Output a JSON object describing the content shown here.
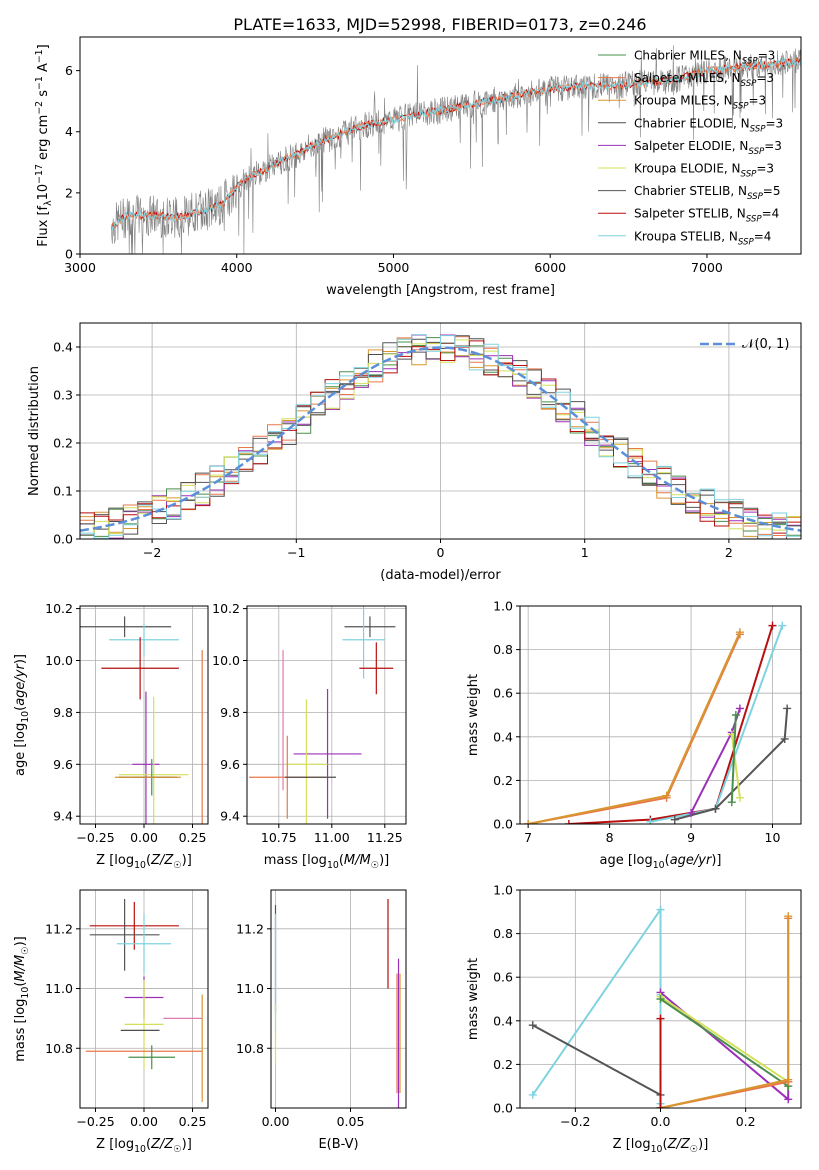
{
  "figure": {
    "title": "PLATE=1633, MJD=52998, FIBERID=0173, z=0.246"
  },
  "colors": {
    "chabrier_miles": "#4a8f4a",
    "salpeter_miles": "#e8774a",
    "kroupa_miles": "#d9962f",
    "chabrier_elodie": "#4f4f4f",
    "salpeter_elodie": "#9b30b8",
    "kroupa_elodie": "#d4e05a",
    "chabrier_stelib": "#555555",
    "salpeter_stelib": "#b80f0f",
    "kroupa_stelib": "#7fd3e0",
    "gaussian": "#5b8fd9",
    "spectrum": "#808080"
  },
  "legend_models": [
    {
      "name": "Chabrier MILES",
      "nssp": "3",
      "color_key": "chabrier_miles"
    },
    {
      "name": "Salpeter MILES",
      "nssp": "3",
      "color_key": "salpeter_miles"
    },
    {
      "name": "Kroupa MILES",
      "nssp": "3",
      "color_key": "kroupa_miles"
    },
    {
      "name": "Chabrier ELODIE",
      "nssp": "3",
      "color_key": "chabrier_elodie"
    },
    {
      "name": "Salpeter ELODIE",
      "nssp": "3",
      "color_key": "salpeter_elodie"
    },
    {
      "name": "Kroupa ELODIE",
      "nssp": "3",
      "color_key": "kroupa_elodie"
    },
    {
      "name": "Chabrier STELIB",
      "nssp": "5",
      "color_key": "chabrier_stelib"
    },
    {
      "name": "Salpeter STELIB",
      "nssp": "4",
      "color_key": "salpeter_stelib"
    },
    {
      "name": "Kroupa STELIB",
      "nssp": "4",
      "color_key": "kroupa_stelib"
    }
  ],
  "chart_data": [
    {
      "id": "spectrum",
      "type": "line",
      "title": "PLATE=1633, MJD=52998, FIBERID=0173, z=0.246",
      "xlabel": "wavelength [Angstrom, rest frame]",
      "ylabel": "Flux [f_λ 10^-17 erg cm^-2 s^-1 A^-1]",
      "xlim": [
        3000,
        7600
      ],
      "ylim": [
        0,
        7.1
      ],
      "xticks": [
        3000,
        4000,
        5000,
        6000,
        7000
      ],
      "yticks": [
        0,
        2,
        4,
        6
      ],
      "grid": false,
      "legend_position": "top-right",
      "continuum": {
        "x": [
          3200,
          3300,
          3400,
          3500,
          3600,
          3700,
          3800,
          3900,
          4000,
          4100,
          4200,
          4300,
          4400,
          4500,
          4600,
          4800,
          5000,
          5200,
          5400,
          5600,
          5800,
          6000,
          6200,
          6400,
          6600,
          6800,
          7000,
          7200,
          7400,
          7600
        ],
        "y": [
          0.9,
          1.25,
          1.3,
          1.25,
          1.2,
          1.3,
          1.45,
          1.6,
          2.2,
          2.6,
          2.8,
          3.1,
          3.3,
          3.6,
          3.8,
          4.2,
          4.4,
          4.6,
          4.8,
          5.0,
          5.2,
          5.4,
          5.5,
          5.5,
          5.6,
          5.7,
          6.0,
          6.1,
          6.2,
          6.3
        ]
      }
    },
    {
      "id": "residuals",
      "type": "line",
      "xlabel": "(data-model)/error",
      "ylabel": "Normed distribution",
      "xlim": [
        -2.5,
        2.5
      ],
      "ylim": [
        0,
        0.45
      ],
      "xticks": [
        -2,
        -1,
        0,
        1,
        2
      ],
      "yticks": [
        0.0,
        0.1,
        0.2,
        0.3,
        0.4
      ],
      "grid": true,
      "legend_position": "top-right",
      "series": [
        {
          "name": "N(0,1)",
          "function": "gaussian",
          "mean": 0,
          "sigma": 1
        }
      ]
    },
    {
      "id": "age_vs_Z",
      "type": "scatter",
      "xlabel": "Z [log10(Z/Z☉)]",
      "ylabel": "age  [log10(age/yr)]",
      "xlim": [
        -0.33,
        0.33
      ],
      "ylim": [
        9.37,
        10.21
      ],
      "xticks": [
        -0.25,
        0.0,
        0.25
      ],
      "yticks": [
        9.4,
        9.6,
        9.8,
        10.0,
        10.2
      ],
      "grid": true,
      "points": [
        {
          "model": "chabrier_stelib",
          "x": -0.1,
          "xerr": 0.24,
          "y": 10.13,
          "yerr": 0.04
        },
        {
          "model": "kroupa_stelib",
          "x": 0.0,
          "xerr": 0.18,
          "y": 10.08,
          "yerr": 0.06
        },
        {
          "model": "salpeter_stelib",
          "x": -0.02,
          "xerr": 0.2,
          "y": 9.97,
          "yerr": 0.12
        },
        {
          "model": "salpeter_elodie",
          "x": 0.01,
          "xerr": 0.07,
          "y": 9.6,
          "yerr": 0.28
        },
        {
          "model": "kroupa_elodie",
          "x": 0.05,
          "xerr": 0.18,
          "y": 9.56,
          "yerr": 0.3
        },
        {
          "model": "chabrier_miles",
          "x": 0.04,
          "xerr": 0.1,
          "y": 9.55,
          "yerr": 0.07
        },
        {
          "model": "salpeter_miles",
          "x": 0.3,
          "xerr": 0.0,
          "y": 9.7,
          "yerr": 0.34
        },
        {
          "model": "chabrier_elodie",
          "x": 0.02,
          "xerr": 0.15,
          "y": 9.55,
          "yerr": 0.0
        },
        {
          "model": "kroupa_miles",
          "x": 0.02,
          "xerr": 0.17,
          "y": 9.55,
          "yerr": 0.0
        }
      ]
    },
    {
      "id": "age_vs_mass",
      "type": "scatter",
      "xlabel": "mass [log10(M/M☉)]",
      "ylabel": "",
      "xlim": [
        10.6,
        11.35
      ],
      "ylim": [
        9.37,
        10.21
      ],
      "xticks": [
        10.75,
        11.0,
        11.25
      ],
      "yticks": [
        9.4,
        9.6,
        9.8,
        10.0,
        10.2
      ],
      "grid": true,
      "points": [
        {
          "model": "chabrier_stelib",
          "x": 11.18,
          "xerr": 0.12,
          "y": 10.13,
          "yerr": 0.04
        },
        {
          "model": "kroupa_stelib",
          "x": 11.15,
          "xerr": 0.1,
          "y": 10.08,
          "yerr": 0.15
        },
        {
          "model": "salpeter_stelib",
          "x": 11.21,
          "xerr": 0.08,
          "y": 9.97,
          "yerr": 0.1
        },
        {
          "model": "salpeter_elodie",
          "x": 10.98,
          "xerr": 0.16,
          "y": 9.64,
          "yerr": 0.25
        },
        {
          "model": "kroupa_elodie",
          "x": 10.88,
          "xerr": 0.1,
          "y": 9.6,
          "yerr": 0.25
        },
        {
          "model": "salpeter_miles",
          "x": 10.79,
          "xerr": 0.18,
          "y": 9.55,
          "yerr": 0.16
        },
        {
          "model": "kroupa_stelib_b",
          "x": 10.77,
          "xerr": 0.0,
          "y": 9.77,
          "yerr": 0.27
        },
        {
          "model": "chabrier_elodie",
          "x": 10.9,
          "xerr": 0.12,
          "y": 9.55,
          "yerr": 0.0
        }
      ]
    },
    {
      "id": "massweight_vs_age",
      "type": "line",
      "xlabel": "age  [log10(age/yr)]",
      "ylabel": "mass weight",
      "xlim": [
        6.9,
        10.35
      ],
      "ylim": [
        0.0,
        1.0
      ],
      "xticks": [
        7,
        8,
        9,
        10
      ],
      "yticks": [
        0.0,
        0.2,
        0.4,
        0.6,
        0.8,
        1.0
      ],
      "grid": true,
      "series": [
        {
          "model": "salpeter_miles",
          "x": [
            7.0,
            8.7,
            9.6
          ],
          "y": [
            0.0,
            0.12,
            0.87
          ]
        },
        {
          "model": "kroupa_miles",
          "x": [
            7.0,
            8.7,
            9.6
          ],
          "y": [
            0.0,
            0.13,
            0.88
          ]
        },
        {
          "model": "salpeter_stelib",
          "x": [
            7.5,
            8.5,
            9.3,
            10.0
          ],
          "y": [
            0.0,
            0.02,
            0.07,
            0.91
          ]
        },
        {
          "model": "kroupa_stelib",
          "x": [
            8.5,
            9.3,
            10.12
          ],
          "y": [
            0.01,
            0.07,
            0.91
          ]
        },
        {
          "model": "chabrier_stelib",
          "x": [
            8.8,
            9.3,
            10.15,
            10.18
          ],
          "y": [
            0.02,
            0.07,
            0.39,
            0.53
          ]
        },
        {
          "model": "salpeter_elodie",
          "x": [
            9.0,
            9.5,
            9.6
          ],
          "y": [
            0.05,
            0.42,
            0.53
          ]
        },
        {
          "model": "kroupa_elodie",
          "x": [
            9.5,
            9.6
          ],
          "y": [
            0.41,
            0.12
          ]
        },
        {
          "model": "chabrier_miles",
          "x": [
            9.5,
            9.55
          ],
          "y": [
            0.1,
            0.5
          ]
        }
      ]
    },
    {
      "id": "mass_vs_Z",
      "type": "scatter",
      "xlabel": "Z [log10(Z/Z☉)]",
      "ylabel": "mass [log10(M/M☉)]",
      "xlim": [
        -0.33,
        0.33
      ],
      "ylim": [
        10.6,
        11.33
      ],
      "xticks": [
        -0.25,
        0.0,
        0.25
      ],
      "yticks": [
        10.8,
        11.0,
        11.2
      ],
      "grid": true,
      "points": [
        {
          "model": "salpeter_stelib",
          "x": -0.05,
          "xerr": 0.23,
          "y": 11.21,
          "yerr": 0.08
        },
        {
          "model": "chabrier_stelib",
          "x": -0.1,
          "xerr": 0.18,
          "y": 11.18,
          "yerr": 0.12
        },
        {
          "model": "kroupa_stelib",
          "x": 0.0,
          "xerr": 0.14,
          "y": 11.15,
          "yerr": 0.1
        },
        {
          "model": "salpeter_elodie",
          "x": 0.0,
          "xerr": 0.1,
          "y": 10.97,
          "yerr": 0.07
        },
        {
          "model": "kroupa_stelib_b",
          "x": 0.2,
          "xerr": 0.1,
          "y": 10.9,
          "yerr": 0.0
        },
        {
          "model": "kroupa_elodie",
          "x": 0.0,
          "xerr": 0.1,
          "y": 10.88,
          "yerr": 0.15
        },
        {
          "model": "chabrier_elodie",
          "x": -0.02,
          "xerr": 0.1,
          "y": 10.86,
          "yerr": 0.0
        },
        {
          "model": "salpeter_miles",
          "x": 0.0,
          "xerr": 0.3,
          "y": 10.79,
          "yerr": 0.0
        },
        {
          "model": "kroupa_miles",
          "x": 0.3,
          "xerr": 0.0,
          "y": 10.8,
          "yerr": 0.18
        },
        {
          "model": "chabrier_miles",
          "x": 0.04,
          "xerr": 0.12,
          "y": 10.77,
          "yerr": 0.04
        }
      ]
    },
    {
      "id": "mass_vs_ebv",
      "type": "scatter",
      "xlabel": "E(B-V)",
      "ylabel": "",
      "xlim": [
        -0.003,
        0.087
      ],
      "ylim": [
        10.6,
        11.33
      ],
      "xticks": [
        0.0,
        0.05
      ],
      "yticks": [
        10.8,
        11.0,
        11.2
      ],
      "grid": true,
      "points": [
        {
          "model": "chabrier_stelib",
          "x": 0.0,
          "y": 11.1,
          "yerr": 0.18
        },
        {
          "model": "kroupa_stelib",
          "x": 0.0,
          "y": 11.05,
          "yerr": 0.2
        },
        {
          "model": "kroupa_elodie",
          "x": 0.0,
          "y": 10.85,
          "yerr": 0.1
        },
        {
          "model": "salpeter_stelib",
          "x": 0.075,
          "y": 11.15,
          "yerr": 0.15
        },
        {
          "model": "salpeter_elodie",
          "x": 0.082,
          "y": 10.85,
          "yerr": 0.25
        },
        {
          "model": "kroupa_miles",
          "x": 0.083,
          "y": 10.85,
          "yerr": 0.2
        },
        {
          "model": "salpeter_miles",
          "x": 0.081,
          "y": 10.85,
          "yerr": 0.2
        }
      ]
    },
    {
      "id": "massweight_vs_Z",
      "type": "line",
      "xlabel": "Z [log10(Z/Z☉)]",
      "ylabel": "mass weight",
      "xlim": [
        -0.33,
        0.33
      ],
      "ylim": [
        0.0,
        1.0
      ],
      "xticks": [
        -0.2,
        0.0,
        0.2
      ],
      "yticks": [
        0.0,
        0.2,
        0.4,
        0.6,
        0.8,
        1.0
      ],
      "grid": true,
      "series": [
        {
          "model": "kroupa_stelib",
          "x": [
            -0.3,
            0.0,
            0.0,
            0.0
          ],
          "y": [
            0.06,
            0.91,
            0.52,
            0.02
          ]
        },
        {
          "model": "chabrier_stelib",
          "x": [
            -0.3,
            0.0,
            0.0
          ],
          "y": [
            0.38,
            0.06,
            0.0
          ]
        },
        {
          "model": "salpeter_elodie",
          "x": [
            0.0,
            0.3,
            0.3
          ],
          "y": [
            0.53,
            0.04,
            0.12
          ]
        },
        {
          "model": "kroupa_elodie",
          "x": [
            0.0,
            0.3,
            0.3
          ],
          "y": [
            0.51,
            0.12,
            0.1
          ]
        },
        {
          "model": "chabrier_miles",
          "x": [
            0.0,
            0.3
          ],
          "y": [
            0.5,
            0.1
          ]
        },
        {
          "model": "salpeter_miles",
          "x": [
            0.0,
            0.3,
            0.3
          ],
          "y": [
            0.0,
            0.12,
            0.87
          ]
        },
        {
          "model": "kroupa_miles",
          "x": [
            0.0,
            0.3,
            0.3
          ],
          "y": [
            0.0,
            0.13,
            0.88
          ]
        },
        {
          "model": "salpeter_stelib",
          "x": [
            0.0,
            0.0
          ],
          "y": [
            0.41,
            0.0
          ]
        }
      ]
    }
  ],
  "labels": {
    "t1_x": "wavelength [Angstrom, rest frame]",
    "t2_x": "(data-model)/error",
    "t2_y": "Normed distribution",
    "t2_legend": "𝒩(0, 1)",
    "p3_x": "Z [log",
    "p3_y": "age  [log",
    "p4_x": "mass [log",
    "p5_x": "age  [log",
    "p5_y": "mass weight",
    "p6_x": "Z [log",
    "p6_y": "mass [log",
    "p7_x": "E(B-V)",
    "p8_x": "Z [log",
    "p8_y": "mass weight"
  }
}
